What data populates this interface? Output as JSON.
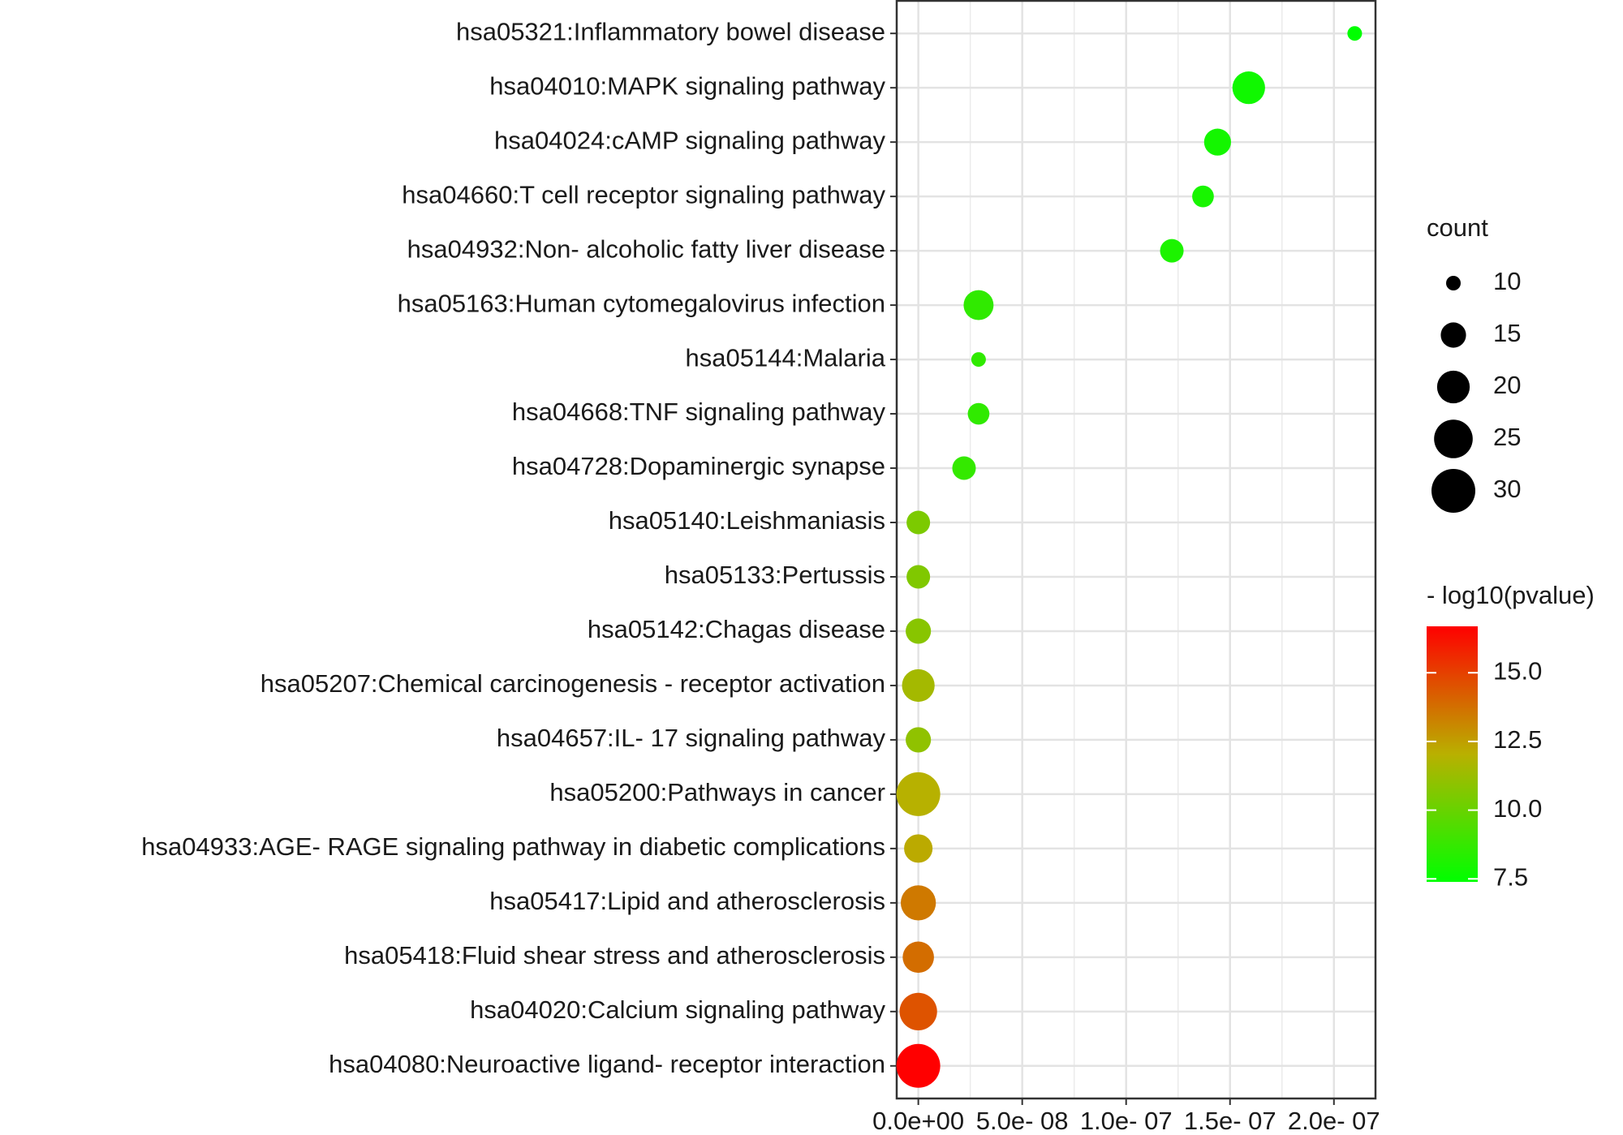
{
  "chart_data": {
    "type": "dot",
    "x_axis_scale": "linear",
    "categories": [
      "hsa05321:Inflammatory bowel disease",
      "hsa04010:MAPK signaling pathway",
      "hsa04024:cAMP signaling pathway",
      "hsa04660:T cell receptor signaling pathway",
      "hsa04932:Non- alcoholic fatty liver disease",
      "hsa05163:Human cytomegalovirus infection",
      "hsa05144:Malaria",
      "hsa04668:TNF signaling pathway",
      "hsa04728:Dopaminergic synapse",
      "hsa05140:Leishmaniasis",
      "hsa05133:Pertussis",
      "hsa05142:Chagas disease",
      "hsa05207:Chemical carcinogenesis -  receptor activation",
      "hsa04657:IL- 17 signaling pathway",
      "hsa05200:Pathways in cancer",
      "hsa04933:AGE- RAGE signaling pathway in diabetic complications",
      "hsa05417:Lipid and atherosclerosis",
      "hsa05418:Fluid shear stress and atherosclerosis",
      "hsa04020:Calcium signaling pathway",
      "hsa04080:Neuroactive ligand- receptor interaction"
    ],
    "values": [
      2.1e-07,
      1.59e-07,
      1.44e-07,
      1.37e-07,
      1.22e-07,
      2.9e-08,
      2.9e-08,
      2.9e-08,
      2.2e-08,
      0,
      0,
      0,
      0,
      0,
      0,
      0,
      0,
      0,
      0,
      0
    ],
    "counts": [
      10,
      20,
      16,
      13,
      14,
      18,
      10,
      13,
      14,
      14,
      14,
      15,
      20,
      15,
      30,
      17,
      22,
      19,
      24,
      30
    ],
    "color_values": [
      7.4,
      7.8,
      7.9,
      8.0,
      8.1,
      8.6,
      8.6,
      8.6,
      8.7,
      10.5,
      10.6,
      10.8,
      11.5,
      11.0,
      12.0,
      12.2,
      13.5,
      13.8,
      14.5,
      16.7
    ],
    "xlim": [
      -1.04e-08,
      2.2e-07
    ],
    "xticks": [
      {
        "value": 0,
        "label": "0.0e+00"
      },
      {
        "value": 5e-08,
        "label": "5.0e- 08"
      },
      {
        "value": 1e-07,
        "label": "1.0e- 07"
      },
      {
        "value": 1.5e-07,
        "label": "1.5e- 07"
      },
      {
        "value": 2e-07,
        "label": "2.0e- 07"
      }
    ],
    "grid": true,
    "size_title": "count",
    "size_ticks": [
      10,
      15,
      20,
      25,
      30
    ],
    "color_title": "- log10(pvalue)",
    "color_lim": [
      7.39,
      16.69
    ],
    "color_ticks": [
      7.5,
      {
        "value": 10,
        "label": "10.0"
      },
      12.5,
      {
        "value": 15,
        "label": "15.0"
      }
    ],
    "colors": [
      "#00FF00",
      "#B9B000",
      "#FF0000"
    ],
    "legend_position": "right"
  }
}
